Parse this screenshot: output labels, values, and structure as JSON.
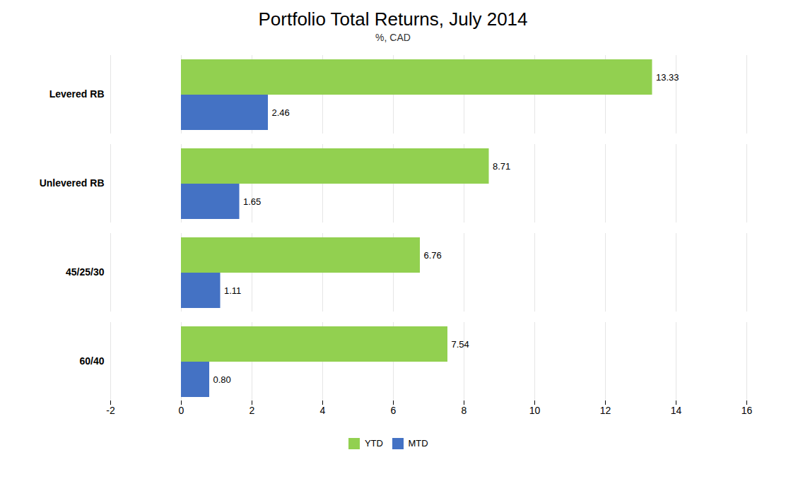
{
  "chart_data": {
    "type": "bar",
    "orientation": "horizontal",
    "title": "Portfolio Total Returns, July 2014",
    "subtitle": "%, CAD",
    "categories": [
      "60/40",
      "45/25/30",
      "Unlevered RB",
      "Levered RB"
    ],
    "series": [
      {
        "name": "YTD",
        "color": "#92d050",
        "values": [
          7.54,
          6.76,
          8.71,
          13.33
        ]
      },
      {
        "name": "MTD",
        "color": "#4472c4",
        "values": [
          0.8,
          1.11,
          1.65,
          2.46
        ],
        "value_labels": [
          "0.80",
          "1.11",
          "1.65",
          "2.46"
        ]
      }
    ],
    "xlim": [
      -2,
      16
    ],
    "xticks": [
      -2,
      0,
      2,
      4,
      6,
      8,
      10,
      12,
      14,
      16
    ],
    "grid": true,
    "data_labels": true,
    "legend": "bottom"
  }
}
